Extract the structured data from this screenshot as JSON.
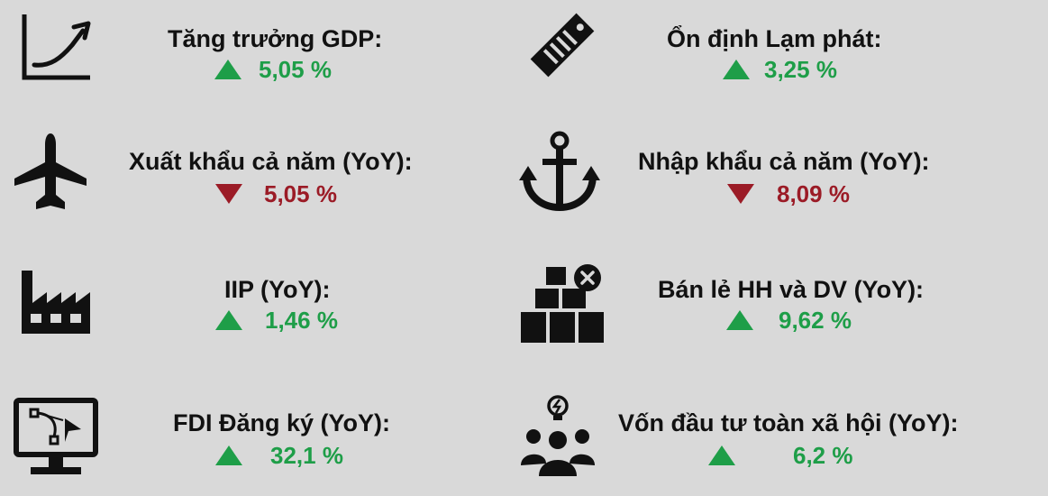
{
  "colors": {
    "up": "#1e9e48",
    "down": "#9b1b26",
    "icon": "#111111",
    "background": "#d9d9d9"
  },
  "items": [
    {
      "icon": "growth-chart-icon",
      "label": "Tăng trưởng GDP:",
      "value": "5,05 %",
      "direction": "up"
    },
    {
      "icon": "price-tag-icon",
      "label": "Ổn định Lạm phát:",
      "value": "3,25 %",
      "direction": "up"
    },
    {
      "icon": "airplane-icon",
      "label": "Xuất khẩu cả năm (YoY):",
      "value": "5,05 %",
      "direction": "down"
    },
    {
      "icon": "anchor-icon",
      "label": "Nhập khẩu cả năm (YoY):",
      "value": "8,09 %",
      "direction": "down"
    },
    {
      "icon": "factory-icon",
      "label": "IIP (YoY):",
      "value": "1,46 %",
      "direction": "up"
    },
    {
      "icon": "boxes-icon",
      "label": "Bán lẻ HH và DV (YoY):",
      "value": "9,62 %",
      "direction": "up"
    },
    {
      "icon": "monitor-design-icon",
      "label": "FDI Đăng ký (YoY):",
      "value": "32,1 %",
      "direction": "up"
    },
    {
      "icon": "team-idea-icon",
      "label": "Vốn đầu tư toàn xã hội (YoY):",
      "value": "6,2 %",
      "direction": "up"
    }
  ]
}
